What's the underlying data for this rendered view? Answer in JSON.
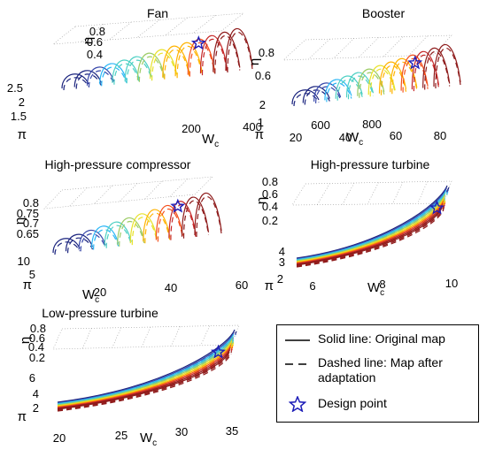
{
  "chart_data": [
    {
      "type": "surface3d",
      "title": "Fan",
      "xlabel": "W",
      "xlabel_sub": "c",
      "ylabel": "π",
      "zlabel": "η",
      "x_ticks": [
        "200",
        "400",
        "600",
        "800"
      ],
      "y_ticks": [
        "1.5",
        "2",
        "2.5"
      ],
      "z_ticks": [
        "0.4",
        "0.6",
        "0.8"
      ],
      "xlim": [
        100,
        850
      ],
      "ylim": [
        1.2,
        2.6
      ],
      "zlim": [
        0.3,
        0.85
      ],
      "n_speed_lines": 14,
      "design_point": {
        "Wc": 650,
        "pi": 2.2,
        "eta": 0.78
      }
    },
    {
      "type": "surface3d",
      "title": "Booster",
      "xlabel": "W",
      "xlabel_sub": "c",
      "ylabel": "π",
      "zlabel": "η",
      "x_ticks": [
        "20",
        "40",
        "60",
        "80"
      ],
      "y_ticks": [
        "1",
        "2"
      ],
      "z_ticks": [
        "0.6",
        "0.8"
      ],
      "xlim": [
        10,
        90
      ],
      "ylim": [
        1,
        2.3
      ],
      "zlim": [
        0.5,
        0.9
      ],
      "n_speed_lines": 14,
      "design_point": {
        "Wc": 70,
        "pi": 1.9,
        "eta": 0.85
      }
    },
    {
      "type": "surface3d",
      "title": "High-pressure compressor",
      "xlabel": "W",
      "xlabel_sub": "c",
      "ylabel": "π",
      "zlabel": "η",
      "x_ticks": [
        "20",
        "40",
        "60"
      ],
      "y_ticks": [
        "5",
        "10"
      ],
      "z_ticks": [
        "0.65",
        "0.7",
        "0.75",
        "0.8"
      ],
      "xlim": [
        8,
        60
      ],
      "ylim": [
        2,
        14
      ],
      "zlim": [
        0.6,
        0.82
      ],
      "n_speed_lines": 12,
      "design_point": {
        "Wc": 48,
        "pi": 12,
        "eta": 0.81
      }
    },
    {
      "type": "surface3d",
      "title": "High-pressure turbine",
      "xlabel": "W",
      "xlabel_sub": "c",
      "ylabel": "π",
      "zlabel": "η",
      "x_ticks": [
        "6",
        "8",
        "10"
      ],
      "y_ticks": [
        "2",
        "3",
        "4"
      ],
      "z_ticks": [
        "0.2",
        "0.4",
        "0.6",
        "0.8"
      ],
      "xlim": [
        5.5,
        10.5
      ],
      "ylim": [
        2,
        5
      ],
      "zlim": [
        0.1,
        0.85
      ],
      "n_speed_lines": 11,
      "design_point": {
        "Wc": 10,
        "pi": 4.2,
        "eta": 0.8
      }
    },
    {
      "type": "surface3d",
      "title": "Low-pressure turbine",
      "xlabel": "W",
      "xlabel_sub": "c",
      "ylabel": "π",
      "zlabel": "η",
      "x_ticks": [
        "20",
        "25",
        "30",
        "35"
      ],
      "y_ticks": [
        "2",
        "4",
        "6"
      ],
      "z_ticks": [
        "0.2",
        "0.4",
        "0.6",
        "0.8"
      ],
      "xlim": [
        19,
        36
      ],
      "ylim": [
        1.5,
        7
      ],
      "zlim": [
        0.1,
        0.85
      ],
      "n_speed_lines": 11,
      "design_point": {
        "Wc": 34,
        "pi": 6.2,
        "eta": 0.8
      }
    }
  ],
  "legend": {
    "placement": "bottom-right",
    "items": [
      {
        "style": "solid",
        "label": "Solid line: Original map"
      },
      {
        "style": "dashed",
        "label": "Dashed line: Map after\nadaptation"
      },
      {
        "style": "star",
        "label": "Design point"
      }
    ]
  },
  "colors": {
    "design_star": "#1d1db8",
    "colormap": [
      "#1a237e",
      "#3949ab",
      "#29b6f6",
      "#4dd0c4",
      "#9ccc65",
      "#e8e22a",
      "#ffb300",
      "#f4511e",
      "#c62828",
      "#8e1b1b"
    ]
  }
}
